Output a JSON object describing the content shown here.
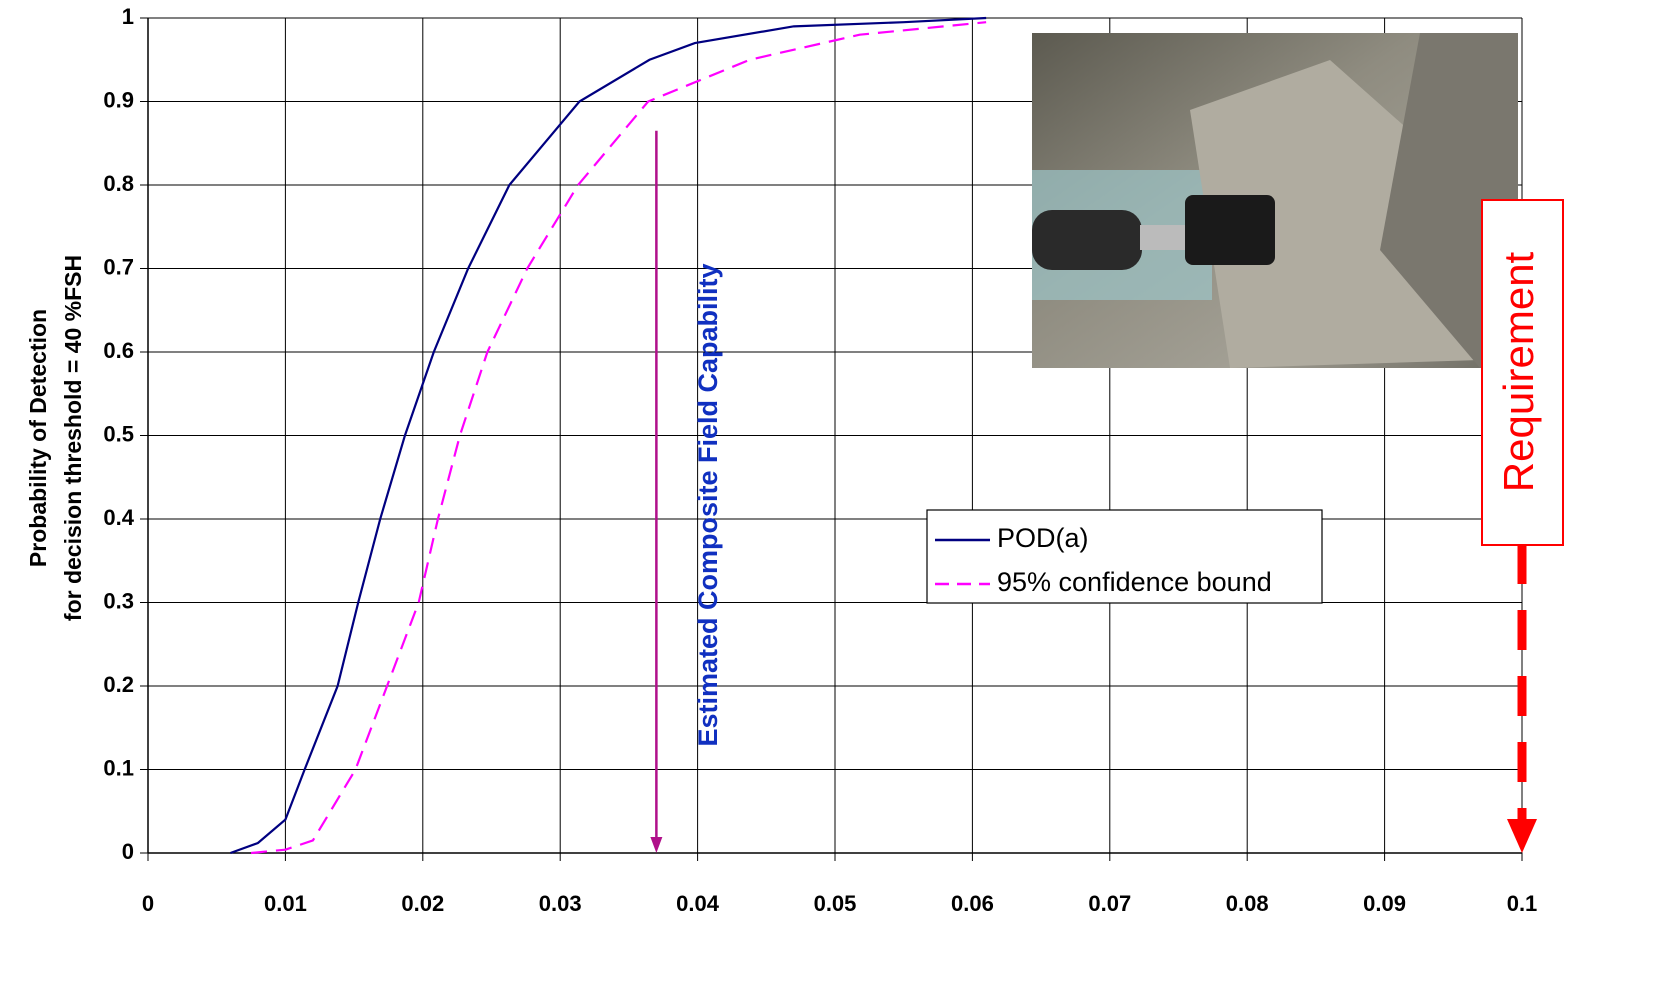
{
  "chart_data": {
    "type": "line",
    "y_label": [
      "Probability of Detection",
      "for decision threshold = 40 %FSH"
    ],
    "xlim": [
      0,
      0.1
    ],
    "ylim": [
      0,
      1
    ],
    "xticks": [
      0,
      0.01,
      0.02,
      0.03,
      0.04,
      0.05,
      0.06,
      0.07,
      0.08,
      0.09,
      0.1
    ],
    "yticks": [
      0,
      0.1,
      0.2,
      0.3,
      0.4,
      0.5,
      0.6,
      0.7,
      0.8,
      0.9,
      1
    ],
    "grid": true,
    "series": [
      {
        "name": "POD(a)",
        "color": "#000080",
        "dash": false,
        "x": [
          0.006,
          0.008,
          0.01,
          0.0114,
          0.0138,
          0.0153,
          0.0169,
          0.0187,
          0.0208,
          0.0233,
          0.0263,
          0.0314,
          0.0365,
          0.0398,
          0.047,
          0.055,
          0.061
        ],
        "values": [
          0,
          0.012,
          0.04,
          0.1,
          0.2,
          0.3,
          0.4,
          0.5,
          0.6,
          0.7,
          0.8,
          0.9,
          0.95,
          0.97,
          0.99,
          0.995,
          1.0
        ]
      },
      {
        "name": "95% confidence bound",
        "color": "#ff00ff",
        "dash": true,
        "x": [
          0.0075,
          0.01,
          0.012,
          0.0151,
          0.0174,
          0.0197,
          0.0211,
          0.0227,
          0.0247,
          0.0276,
          0.0313,
          0.0364,
          0.0438,
          0.0518,
          0.061
        ],
        "values": [
          0,
          0.004,
          0.015,
          0.1,
          0.2,
          0.3,
          0.4,
          0.5,
          0.6,
          0.7,
          0.8,
          0.9,
          0.95,
          0.98,
          0.995
        ]
      }
    ],
    "annotations": [
      {
        "text": "Estimated Composite Field Capability",
        "color": "#1030c0",
        "arrow_color": "#b0108a",
        "x": 0.037,
        "y_start": 0.865,
        "y_end": 0
      },
      {
        "text": "Requirement",
        "color": "#ff0000",
        "arrow_color": "#ff0000",
        "x": 0.1,
        "y_start": 0.37,
        "y_end": 0
      }
    ]
  }
}
